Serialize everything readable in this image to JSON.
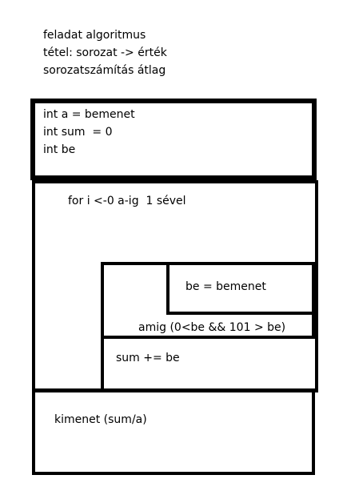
{
  "header": {
    "lines": [
      "feladat algoritmus",
      "tétel: sorozat -> érték",
      "sorozatszámítás átlag"
    ]
  },
  "declarations": {
    "lines": [
      "int a = bemenet",
      "int sum  = 0",
      "int be"
    ]
  },
  "for_loop": {
    "header": "for i <-0 a-ig  1 sével"
  },
  "do_while": {
    "body": "be = bemenet",
    "condition": "amig (0<be && 101 > be)"
  },
  "accumulate": {
    "statement": "sum += be"
  },
  "output": {
    "statement": "kimenet (sum/a)"
  }
}
